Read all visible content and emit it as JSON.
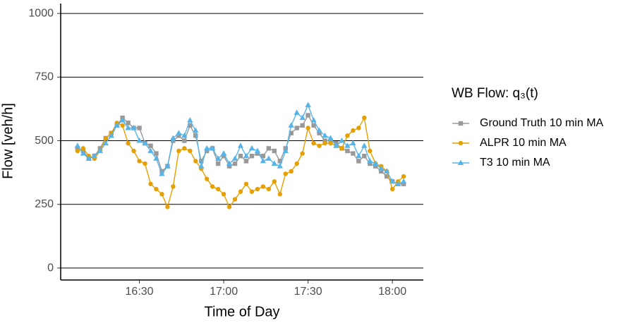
{
  "chart_data": {
    "type": "line",
    "x_label": "Time of Day",
    "y_label": "Flow [veh/h]",
    "legend_title": "WB Flow: q₃(t)",
    "legend_position": "right",
    "grid": true,
    "xlim": [
      "16:02",
      "18:11"
    ],
    "xticks": [
      "16:30",
      "17:00",
      "17:30",
      "18:00"
    ],
    "ylim": [
      -47,
      1039
    ],
    "yticks": [
      0,
      250,
      500,
      750,
      1000
    ],
    "x": [
      "16:08",
      "16:10",
      "16:12",
      "16:14",
      "16:16",
      "16:18",
      "16:20",
      "16:22",
      "16:24",
      "16:26",
      "16:28",
      "16:30",
      "16:32",
      "16:34",
      "16:36",
      "16:38",
      "16:40",
      "16:42",
      "16:44",
      "16:46",
      "16:48",
      "16:50",
      "16:52",
      "16:54",
      "16:56",
      "16:58",
      "17:00",
      "17:02",
      "17:04",
      "17:06",
      "17:08",
      "17:10",
      "17:12",
      "17:14",
      "17:16",
      "17:18",
      "17:20",
      "17:22",
      "17:24",
      "17:26",
      "17:28",
      "17:30",
      "17:32",
      "17:34",
      "17:36",
      "17:38",
      "17:40",
      "17:42",
      "17:44",
      "17:46",
      "17:48",
      "17:50",
      "17:52",
      "17:54",
      "17:56",
      "17:58",
      "18:00",
      "18:02",
      "18:04"
    ],
    "series": [
      {
        "name": "Ground Truth 10 min MA",
        "color": "#999999",
        "marker": "square",
        "values": [
          470,
          460,
          430,
          440,
          470,
          510,
          530,
          560,
          590,
          570,
          550,
          550,
          490,
          480,
          450,
          380,
          400,
          500,
          520,
          500,
          560,
          520,
          420,
          460,
          470,
          410,
          440,
          400,
          410,
          440,
          420,
          440,
          450,
          440,
          470,
          460,
          420,
          470,
          530,
          550,
          560,
          600,
          560,
          530,
          500,
          500,
          490,
          470,
          460,
          450,
          420,
          440,
          410,
          400,
          380,
          360,
          340,
          330,
          330
        ]
      },
      {
        "name": "ALPR 10 min MA",
        "color": "#E69F00",
        "marker": "circle",
        "values": [
          460,
          470,
          440,
          430,
          460,
          510,
          530,
          570,
          560,
          490,
          460,
          420,
          410,
          330,
          310,
          290,
          240,
          320,
          460,
          470,
          460,
          420,
          390,
          350,
          320,
          310,
          290,
          240,
          270,
          300,
          330,
          300,
          310,
          320,
          310,
          340,
          290,
          370,
          380,
          410,
          450,
          550,
          490,
          480,
          490,
          490,
          480,
          470,
          520,
          540,
          550,
          590,
          460,
          410,
          400,
          380,
          310,
          340,
          360
        ]
      },
      {
        "name": "T3 10 min MA",
        "color": "#56B4E9",
        "marker": "triangle",
        "values": [
          480,
          450,
          430,
          440,
          460,
          490,
          520,
          560,
          580,
          550,
          550,
          500,
          490,
          460,
          430,
          370,
          400,
          510,
          530,
          520,
          580,
          540,
          400,
          470,
          470,
          430,
          450,
          410,
          430,
          480,
          440,
          470,
          460,
          420,
          430,
          410,
          400,
          460,
          560,
          610,
          590,
          640,
          580,
          540,
          520,
          510,
          480,
          500,
          480,
          490,
          440,
          480,
          420,
          410,
          390,
          380,
          340,
          330,
          340
        ]
      }
    ]
  }
}
